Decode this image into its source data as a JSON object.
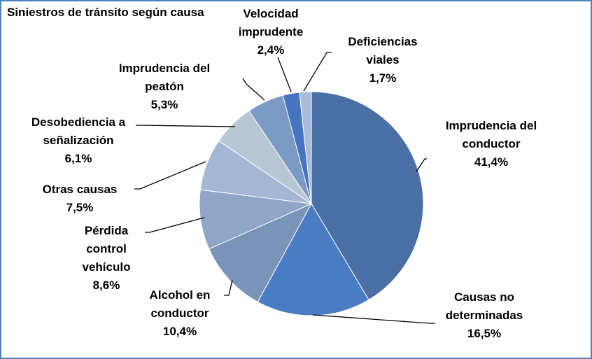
{
  "chart_data": {
    "type": "pie",
    "title": "Siniestros de tránsito según causa",
    "categories": [
      "Imprudencia del conductor",
      "Causas no determinadas",
      "Alcohol en conductor",
      "Pérdida control vehículo",
      "Otras causas",
      "Desobediencia a señalización",
      "Imprudencia del peatón",
      "Velocidad imprudente",
      "Deficiencias viales"
    ],
    "values": [
      41.4,
      16.5,
      10.4,
      8.6,
      7.5,
      6.1,
      5.3,
      2.4,
      1.7
    ],
    "value_labels": [
      "41,4%",
      "16,5%",
      "10,4%",
      "8,6%",
      "7,5%",
      "6,1%",
      "5,3%",
      "2,4%",
      "1,7%"
    ],
    "colors": [
      "#4a6fa5",
      "#4a7cc3",
      "#7a93b8",
      "#90a6c6",
      "#a4b8d6",
      "#b9c6d6",
      "#7b9ac4",
      "#4674c0",
      "#a9bddb"
    ]
  }
}
